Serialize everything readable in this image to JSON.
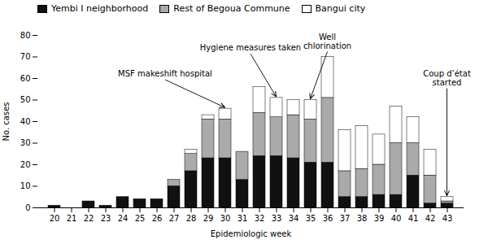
{
  "chart_data": {
    "type": "bar",
    "stacked": true,
    "categories": [
      20,
      21,
      22,
      23,
      24,
      25,
      26,
      27,
      28,
      29,
      30,
      31,
      32,
      33,
      34,
      35,
      36,
      37,
      38,
      39,
      40,
      41,
      42,
      43
    ],
    "series": [
      {
        "name": "Yembi I neighborhood",
        "color": "#111111",
        "values": [
          1,
          0,
          3,
          1,
          5,
          4,
          4,
          10,
          17,
          23,
          23,
          13,
          24,
          24,
          23,
          21,
          21,
          5,
          5,
          6,
          6,
          15,
          2,
          2
        ]
      },
      {
        "name": "Rest of Begoua Commune",
        "color": "#aaaaaa",
        "values": [
          0,
          0,
          0,
          0,
          0,
          0,
          0,
          3,
          8,
          18,
          18,
          13,
          20,
          18,
          20,
          20,
          30,
          12,
          13,
          14,
          24,
          15,
          13,
          1
        ]
      },
      {
        "name": "Bangui city",
        "color": "#ffffff",
        "values": [
          0,
          0,
          0,
          0,
          0,
          0,
          0,
          0,
          2,
          2,
          5,
          0,
          12,
          9,
          7,
          9,
          19,
          19,
          20,
          14,
          17,
          12,
          12,
          2
        ]
      }
    ],
    "xlabel": "Epidemiologic week",
    "ylabel": "No. cases",
    "ylim": [
      0,
      80
    ],
    "yticks": [
      0,
      10,
      20,
      30,
      40,
      50,
      60,
      70,
      80
    ],
    "legend": "upper left",
    "annotations": [
      {
        "text": "MSF makeshift hospital",
        "x": 30,
        "y": 46
      },
      {
        "text": "Hygiene measures taken",
        "x": 33,
        "y": 51
      },
      {
        "text": "Well\nchlorination",
        "x": 35,
        "y": 50
      },
      {
        "text": "Coup d’état\nstarted",
        "x": 43,
        "y": 5
      }
    ]
  }
}
